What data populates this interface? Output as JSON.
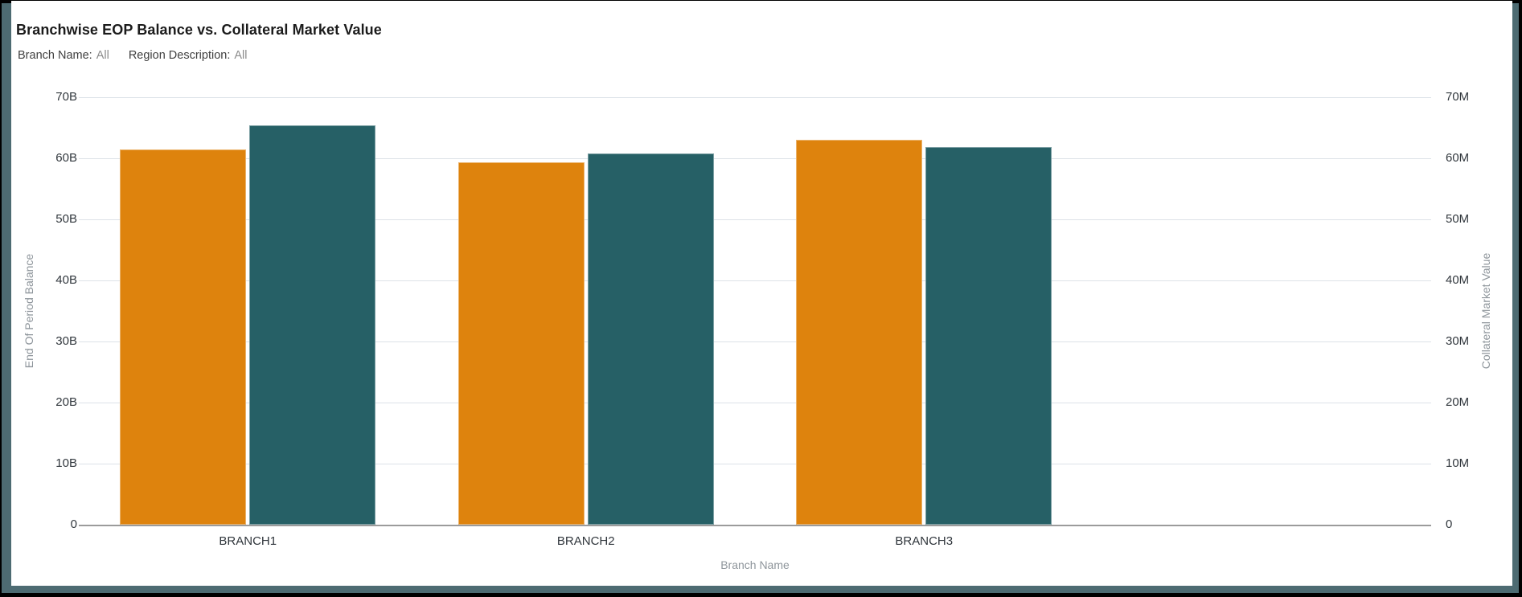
{
  "window": {
    "outer_border_color": "#000000",
    "frame_color": "#4D6B72",
    "card_background": "#FFFFFF"
  },
  "header": {
    "title": "Branchwise EOP Balance vs. Collateral Market Value",
    "filters": [
      {
        "label": "Branch Name:",
        "value": "All"
      },
      {
        "label": "Region Description:",
        "value": "All"
      }
    ]
  },
  "chart_data": {
    "type": "bar",
    "title": "Branchwise EOP Balance vs. Collateral Market Value",
    "categories": [
      "BRANCH1",
      "BRANCH2",
      "BRANCH3"
    ],
    "series": [
      {
        "name": "End Of Period Balance",
        "axis": "left",
        "unit": "B",
        "color": "#DE830D",
        "values": [
          61.4,
          59.3,
          63.0
        ]
      },
      {
        "name": "Collateral Market Value",
        "axis": "right",
        "unit": "M",
        "color": "#266066",
        "values": [
          65.4,
          60.8,
          61.9
        ]
      }
    ],
    "x_axis": {
      "title": "Branch Name",
      "band_slots": 4
    },
    "left_axis": {
      "title": "End Of Period Balance",
      "min": 0,
      "max": 70,
      "step": 10,
      "unit": "B",
      "tick_labels": [
        "0",
        "10B",
        "20B",
        "30B",
        "40B",
        "50B",
        "60B",
        "70B"
      ]
    },
    "right_axis": {
      "title": "Collateral Market Value",
      "min": 0,
      "max": 70,
      "step": 10,
      "unit": "M",
      "tick_labels": [
        "0",
        "10M",
        "20M",
        "30M",
        "40M",
        "50M",
        "60M",
        "70M"
      ]
    },
    "grid": {
      "color": "#DDE2E8",
      "zero_line_color": "#9B9B9B",
      "horizontal_only": true
    },
    "legend": "none"
  }
}
